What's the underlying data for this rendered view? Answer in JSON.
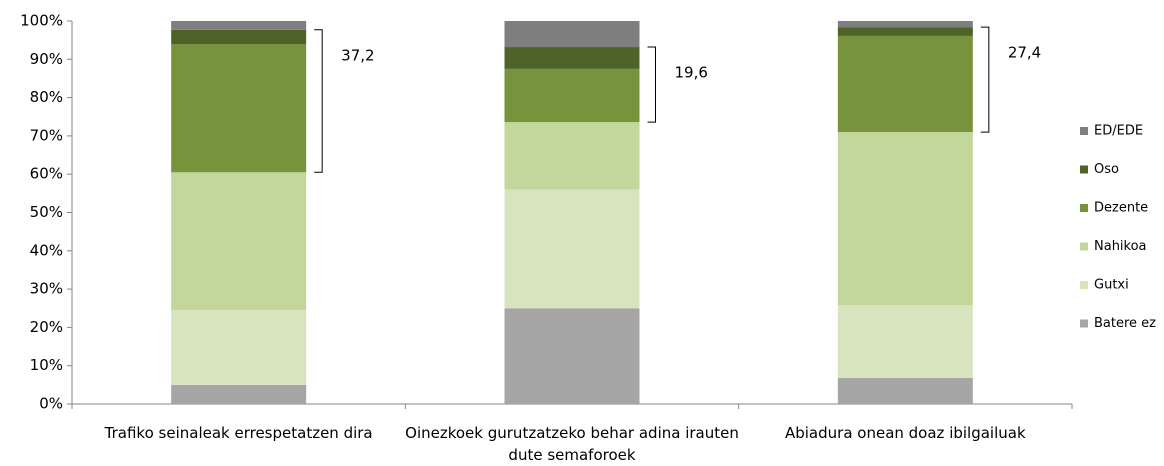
{
  "chart_data": {
    "type": "stacked_bar",
    "categories": [
      "Trafiko seinaleak errespetatzen dira",
      "Oinezkoek gurutzatzeko behar adina irauten dute semaforoek",
      "Abiadura onean doaz ibilgailuak"
    ],
    "series": [
      {
        "name": "Batere ez",
        "color": "#a6a6a6",
        "values": [
          5,
          25,
          6.8
        ]
      },
      {
        "name": "Gutxi",
        "color": "#d7e4bd",
        "values": [
          19.5,
          31,
          19
        ]
      },
      {
        "name": "Nahikoa",
        "color": "#c3d69b",
        "values": [
          36,
          17.6,
          45.2
        ]
      },
      {
        "name": "Dezente",
        "color": "#77933c",
        "values": [
          33.4,
          13.9,
          25.1
        ]
      },
      {
        "name": "Oso",
        "color": "#4f6228",
        "values": [
          3.8,
          5.7,
          2.3
        ]
      },
      {
        "name": "ED/EDE",
        "color": "#7f7f7f",
        "values": [
          2.3,
          6.8,
          1.6
        ]
      }
    ],
    "annotations": [
      "37,2",
      "19,6",
      "27,4"
    ],
    "ylim": [
      0,
      100
    ],
    "yticks": [
      {
        "value": 0,
        "label": "0%"
      },
      {
        "value": 10,
        "label": "10%"
      },
      {
        "value": 20,
        "label": "20%"
      },
      {
        "value": 30,
        "label": "30%"
      },
      {
        "value": 40,
        "label": "40%"
      },
      {
        "value": 50,
        "label": "50%"
      },
      {
        "value": 60,
        "label": "60%"
      },
      {
        "value": 70,
        "label": "70%"
      },
      {
        "value": 80,
        "label": "80%"
      },
      {
        "value": 90,
        "label": "90%"
      },
      {
        "value": 100,
        "label": "100%"
      }
    ],
    "legend": "right"
  }
}
